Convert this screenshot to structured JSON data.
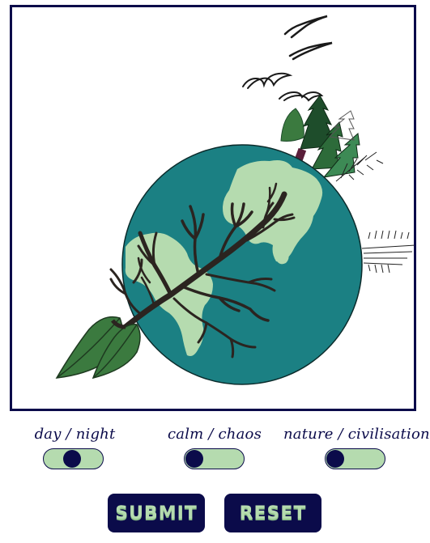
{
  "canvas": {
    "illustration": "earth-globe-with-tree-forest-birds"
  },
  "toggles": [
    {
      "label": "day / night",
      "state": "left"
    },
    {
      "label": "calm / chaos",
      "state": "left"
    },
    {
      "label": "nature / civilisation",
      "state": "left"
    }
  ],
  "buttons": {
    "submit_label": "SUBMIT",
    "reset_label": "RESET"
  },
  "colors": {
    "frame": "#0b0b4a",
    "ocean": "#1b8083",
    "land": "#b5dbaf",
    "tree_dark": "#1e4d2b",
    "leaf_green": "#3b7a3f",
    "button_bg": "#0b0b4a",
    "button_text": "#b5dbaf"
  }
}
